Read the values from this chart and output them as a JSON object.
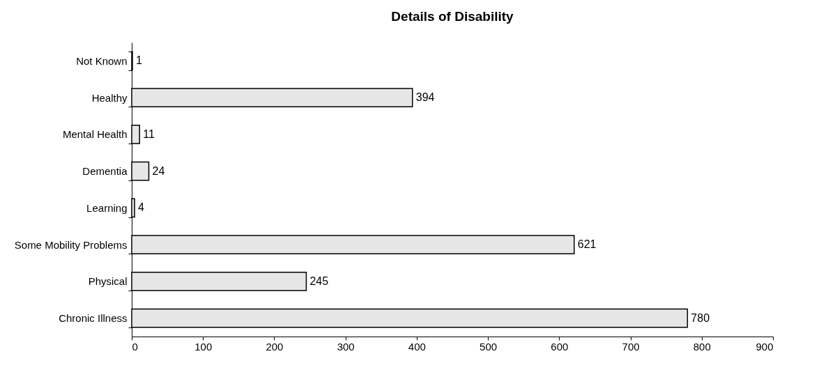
{
  "chart_data": {
    "type": "bar",
    "orientation": "horizontal",
    "title": "Details of Disability",
    "categories": [
      "Not Known",
      "Healthy",
      "Mental Health",
      "Dementia",
      "Learning",
      "Some Mobility Problems",
      "Physical",
      "Chronic Illness"
    ],
    "values": [
      1,
      394,
      11,
      24,
      4,
      621,
      245,
      780
    ],
    "color": "#e6e6e6",
    "xlim": [
      0,
      900
    ],
    "xticks": [
      0,
      100,
      200,
      300,
      400,
      500,
      600,
      700,
      800,
      900
    ],
    "grid": false,
    "data_labels": true
  }
}
